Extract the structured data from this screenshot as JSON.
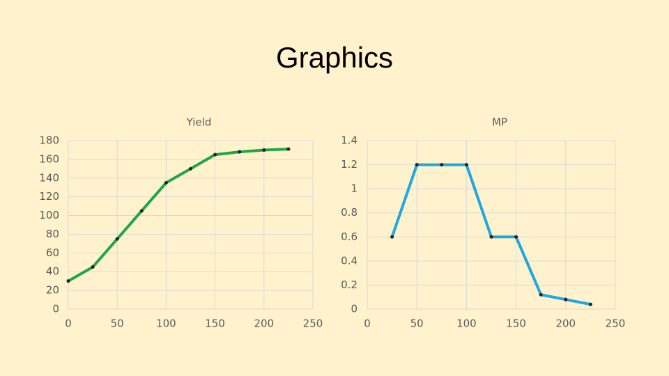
{
  "title": "Graphics",
  "chart_data": [
    {
      "type": "line",
      "title": "Yield",
      "x": [
        0,
        25,
        50,
        75,
        100,
        125,
        150,
        175,
        200,
        225
      ],
      "series": [
        {
          "name": "Yield",
          "color": "#1fa64a",
          "values": [
            30,
            45,
            75,
            105,
            135,
            150,
            165,
            168,
            170,
            171
          ]
        }
      ],
      "xlim": [
        0,
        250
      ],
      "xticks": [
        0,
        50,
        100,
        150,
        200,
        250
      ],
      "ylim": [
        0,
        180
      ],
      "yticks": [
        0,
        20,
        40,
        60,
        80,
        100,
        120,
        140,
        160,
        180
      ],
      "grid": true
    },
    {
      "type": "line",
      "title": "MP",
      "x": [
        25,
        50,
        75,
        100,
        125,
        150,
        175,
        200,
        225
      ],
      "series": [
        {
          "name": "MP",
          "color": "#1ea7e1",
          "values": [
            0.6,
            1.2,
            1.2,
            1.2,
            0.6,
            0.6,
            0.12,
            0.08,
            0.04
          ]
        }
      ],
      "xlim": [
        0,
        250
      ],
      "xticks": [
        0,
        50,
        100,
        150,
        200,
        250
      ],
      "ylim": [
        0,
        1.4
      ],
      "yticks": [
        0,
        0.2,
        0.4,
        0.6,
        0.8,
        1,
        1.2,
        1.4
      ],
      "grid": true
    }
  ]
}
